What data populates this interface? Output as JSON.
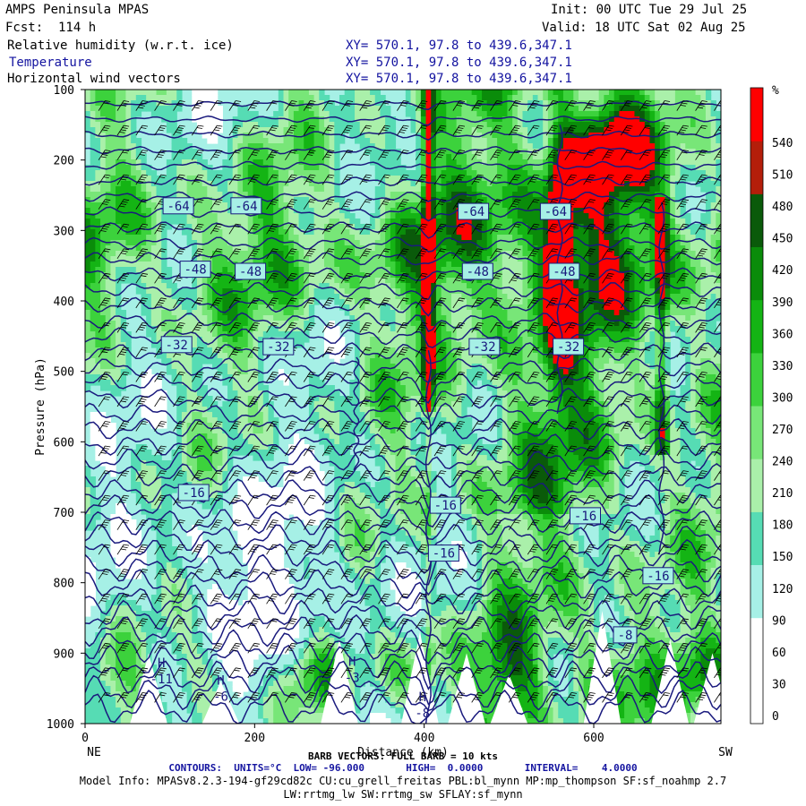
{
  "header": {
    "title": "AMPS Peninsula MPAS",
    "init": "Init: 00 UTC Tue 29 Jul 25",
    "fcst": "Fcst:  114 h",
    "valid": "Valid: 18 UTC Sat 02 Aug 25",
    "fields": [
      {
        "name": "Relative humidity (w.r.t. ice)",
        "xy": "XY= 570.1, 97.8 to 439.6,347.1"
      },
      {
        "name": "Temperature",
        "xy": "XY= 570.1, 97.8 to 439.6,347.1"
      },
      {
        "name": "Horizontal wind vectors",
        "xy": "XY= 570.1, 97.8 to 439.6,347.1"
      }
    ]
  },
  "colors": {
    "contour": "#1a1a7e",
    "barb": "#000000",
    "text_blue": "#1414a0"
  },
  "chart_data": {
    "type": "heatmap",
    "xlabel": "Distance (km)",
    "ylabel": "Pressure (hPa)",
    "xlim": [
      0,
      750
    ],
    "ylim": [
      1000,
      100
    ],
    "x_ticks": [
      0,
      200,
      400,
      600
    ],
    "y_ticks": [
      100,
      200,
      300,
      400,
      500,
      600,
      700,
      800,
      900,
      1000
    ],
    "left_end_label": "NE",
    "right_end_label": "SW",
    "colorbar": {
      "unit": "%",
      "levels": [
        0,
        30,
        60,
        90,
        120,
        150,
        180,
        210,
        240,
        270,
        300,
        330,
        360,
        390,
        420,
        450,
        480,
        510,
        540
      ],
      "colors": [
        "#ffffff",
        "#ffffff",
        "#a6f0e6",
        "#56dcb4",
        "#aaf0aa",
        "#78e678",
        "#3cd23c",
        "#14b414",
        "#0a8c0a",
        "#0a5a0a",
        "#b41e0a",
        "#ff0000"
      ]
    },
    "temperature_labels": [
      {
        "text": "-64",
        "x": 110,
        "p": 265
      },
      {
        "text": "-64",
        "x": 190,
        "p": 265
      },
      {
        "text": "-64",
        "x": 458,
        "p": 273
      },
      {
        "text": "-64",
        "x": 555,
        "p": 273
      },
      {
        "text": "-48",
        "x": 130,
        "p": 355
      },
      {
        "text": "-48",
        "x": 195,
        "p": 358
      },
      {
        "text": "-48",
        "x": 463,
        "p": 358
      },
      {
        "text": "-48",
        "x": 565,
        "p": 358
      },
      {
        "text": "-32",
        "x": 108,
        "p": 462
      },
      {
        "text": "-32",
        "x": 228,
        "p": 465
      },
      {
        "text": "-32",
        "x": 471,
        "p": 465
      },
      {
        "text": "-32",
        "x": 570,
        "p": 465
      },
      {
        "text": "-16",
        "x": 128,
        "p": 672
      },
      {
        "text": "-16",
        "x": 425,
        "p": 690
      },
      {
        "text": "-16",
        "x": 423,
        "p": 758
      },
      {
        "text": "-16",
        "x": 590,
        "p": 705
      },
      {
        "text": "-16",
        "x": 676,
        "p": 790
      },
      {
        "text": "-8",
        "x": 637,
        "p": 874
      }
    ],
    "extrema_labels": [
      {
        "mark": "H",
        "value": "-11",
        "x": 90,
        "p": 920
      },
      {
        "mark": "H",
        "value": "-6",
        "x": 160,
        "p": 945
      },
      {
        "mark": "H",
        "value": "-3",
        "x": 315,
        "p": 918
      },
      {
        "mark": "H",
        "value": "-8",
        "x": 398,
        "p": 968
      }
    ]
  },
  "footer": {
    "barb_line": "BARB VECTORS: FULL BARB = 10 kts",
    "contours_line": "CONTOURS:  UNITS=°C  LOW= -96.000       HIGH=  0.0000       INTERVAL=    4.0000",
    "model_info": "Model Info: MPASv8.2.3-194-gf29cd82c CU:cu_grell_freitas PBL:bl_mynn MP:mp_thompson SF:sf_noahmp 2.7",
    "model_info2": "LW:rrtmg_lw SW:rrtmg_sw SFLAY:sf_mynn"
  }
}
